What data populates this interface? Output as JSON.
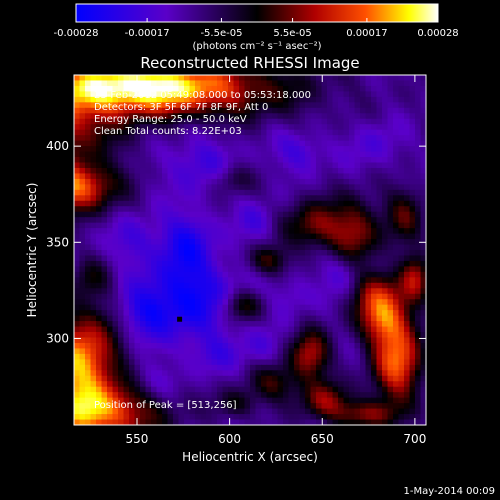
{
  "colorbar": {
    "ticks": [
      "-0.00028",
      "-0.00017",
      "-5.5e-05",
      "5.5e-05",
      "0.00017",
      "0.00028"
    ],
    "tick_values": [
      -0.00028,
      -0.00017,
      -5.5e-05,
      5.5e-05,
      0.00017,
      0.00028
    ],
    "units": "(photons cm⁻² s⁻¹ asec⁻²)",
    "range": [
      -0.00028,
      0.00028
    ],
    "colors": [
      "#0000ff",
      "#5a00c8",
      "#000000",
      "#b00000",
      "#ff5000",
      "#ffff00",
      "#ffffff"
    ]
  },
  "image": {
    "title": "Reconstructed RHESSI Image",
    "xlabel": "Heliocentric X (arcsec)",
    "ylabel": "Heliocentric Y (arcsec)",
    "x_range": [
      516,
      706
    ],
    "y_range": [
      255,
      437
    ],
    "x_ticks": [
      550,
      600,
      650,
      700
    ],
    "y_ticks": [
      300,
      350,
      400
    ],
    "annotations": [
      "23-Feb-2012 05:49:08.000 to 05:53:18.000",
      "Detectors: 3F 5F 6F 7F 8F 9F, Att 0",
      "Energy Range: 25.0 - 50.0 keV",
      "Clean     Total counts: 8.22E+03"
    ],
    "peak_label": "Position of Peak = [513,256]",
    "marker": {
      "x": 573,
      "y": 310
    }
  },
  "footer": {
    "date": "1-May-2014 00:09"
  }
}
